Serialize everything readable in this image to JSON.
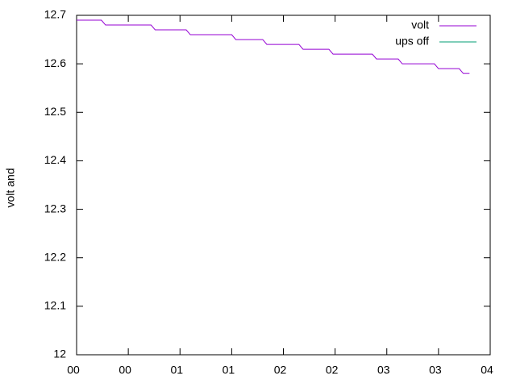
{
  "chart_data": {
    "type": "line",
    "ylabel": "volt and",
    "x": [
      0,
      0.24,
      0.28,
      0.72,
      0.76,
      1.06,
      1.1,
      1.5,
      1.54,
      1.8,
      1.84,
      2.15,
      2.19,
      2.44,
      2.48,
      2.86,
      2.9,
      3.11,
      3.15,
      3.46,
      3.5,
      3.7,
      3.74,
      3.8
    ],
    "series": [
      {
        "name": "volt",
        "color": "#9400d3",
        "values": [
          12.69,
          12.69,
          12.68,
          12.68,
          12.67,
          12.67,
          12.66,
          12.66,
          12.65,
          12.65,
          12.64,
          12.64,
          12.63,
          12.63,
          12.62,
          12.62,
          12.61,
          12.61,
          12.6,
          12.6,
          12.59,
          12.59,
          12.58,
          12.58
        ]
      },
      {
        "name": "ups off",
        "color": "#009e73",
        "values": [
          null,
          null,
          null,
          null,
          null,
          null,
          null,
          null,
          null,
          null,
          null,
          null,
          null,
          null,
          null,
          null,
          null,
          null,
          null,
          null,
          null,
          null,
          null,
          null
        ]
      }
    ],
    "xlim": [
      0,
      4
    ],
    "xticks": [
      {
        "value": 0,
        "label": "00"
      },
      {
        "value": 0.5,
        "label": "00"
      },
      {
        "value": 1,
        "label": "01"
      },
      {
        "value": 1.5,
        "label": "01"
      },
      {
        "value": 2,
        "label": "02"
      },
      {
        "value": 2.5,
        "label": "02"
      },
      {
        "value": 3,
        "label": "03"
      },
      {
        "value": 3.5,
        "label": "03"
      },
      {
        "value": 4,
        "label": "04"
      }
    ],
    "ylim": [
      12,
      12.7
    ],
    "yticks": [
      12,
      12.1,
      12.2,
      12.3,
      12.4,
      12.5,
      12.6,
      12.7
    ],
    "legend": "top-right"
  }
}
